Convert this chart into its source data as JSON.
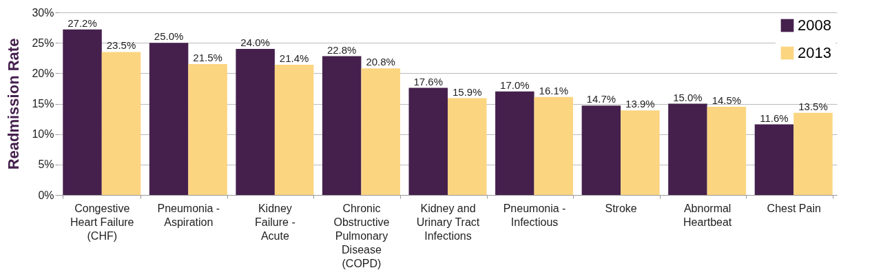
{
  "chart_data": {
    "type": "bar",
    "ylabel": "Readmission Rate",
    "categories": [
      "Congestive Heart Failure (CHF)",
      "Pneumonia - Aspiration",
      "Kidney Failure - Acute",
      "Chronic Obstructive Pulmonary Disease (COPD)",
      "Kidney and Urinary Tract Infections",
      "Pneumonia - Infectious",
      "Stroke",
      "Abnormal Heartbeat",
      "Chest Pain"
    ],
    "series": [
      {
        "name": "2008",
        "color": "#45204d",
        "values": [
          27.2,
          25.0,
          24.0,
          22.8,
          17.6,
          17.0,
          14.7,
          15.0,
          11.6
        ],
        "value_labels": [
          "27.2%",
          "25.0%",
          "24.0%",
          "22.8%",
          "17.6%",
          "17.0%",
          "14.7%",
          "15.0%",
          "11.6%"
        ]
      },
      {
        "name": "2013",
        "color": "#fcd581",
        "values": [
          23.5,
          21.5,
          21.4,
          20.8,
          15.9,
          16.1,
          13.9,
          14.5,
          13.5
        ],
        "value_labels": [
          "23.5%",
          "21.5%",
          "21.4%",
          "20.8%",
          "15.9%",
          "16.1%",
          "13.9%",
          "14.5%",
          "13.5%"
        ]
      }
    ],
    "ylim": [
      0,
      30
    ],
    "yticks": [
      {
        "value": 0,
        "label": "0%"
      },
      {
        "value": 5,
        "label": "5%"
      },
      {
        "value": 10,
        "label": "10%"
      },
      {
        "value": 15,
        "label": "15%"
      },
      {
        "value": 20,
        "label": "20%"
      },
      {
        "value": 25,
        "label": "25%"
      },
      {
        "value": 30,
        "label": "30%"
      }
    ],
    "grid": "y",
    "legend": "top right"
  }
}
